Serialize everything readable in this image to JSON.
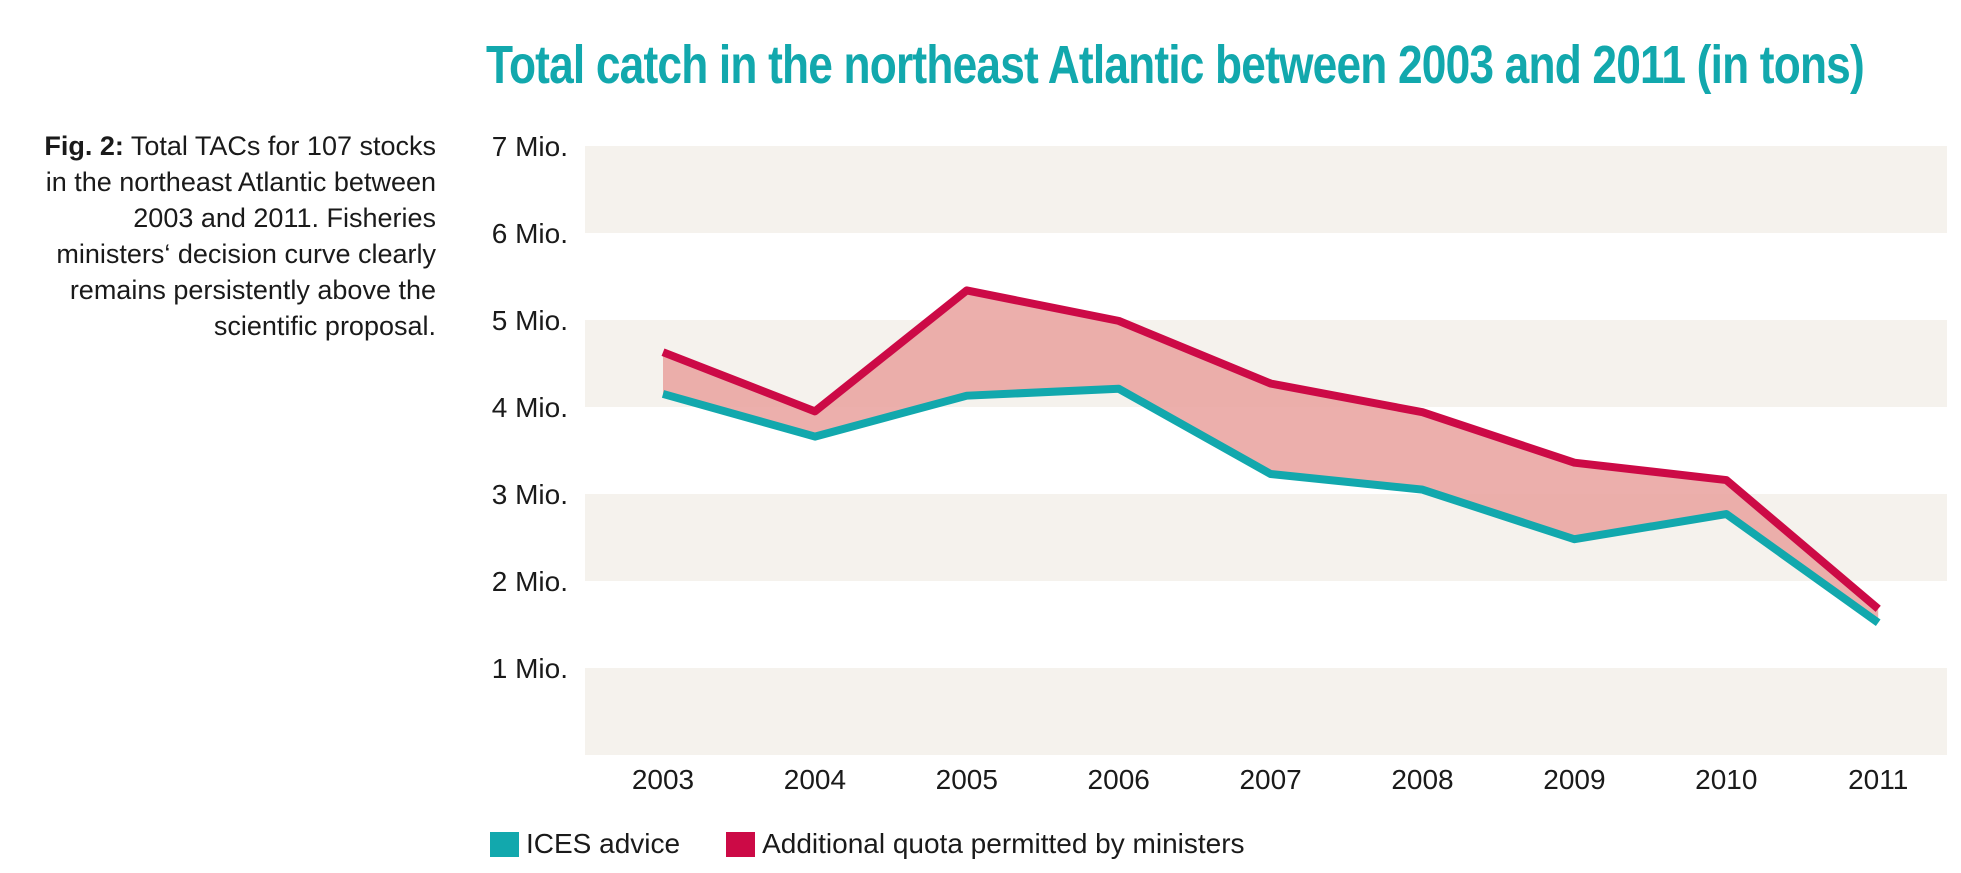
{
  "figure": {
    "caption_label": "Fig. 2:",
    "caption_text": " Total TACs for 107 stocks in the northeast Atlantic between 2003 and 2011. Fisheries ministers‘ decision curve clearly remains persistently above the scientific proposal."
  },
  "colors": {
    "ices": "#12a8ad",
    "ministers": "#cc0a46",
    "gap_fill": "#e9a4a1",
    "band": "#f5f2ed"
  },
  "chart_data": {
    "type": "line",
    "title": "Total catch in the northeast Atlantic between 2003 and 2011 (in tons)",
    "categories": [
      "2003",
      "2004",
      "2005",
      "2006",
      "2007",
      "2008",
      "2009",
      "2010",
      "2011"
    ],
    "y_tick_labels": [
      "1 Mio.",
      "2 Mio.",
      "3 Mio.",
      "4 Mio.",
      "5 Mio.",
      "6 Mio.",
      "7 Mio."
    ],
    "ylim": [
      0,
      7
    ],
    "y_unit_millions_of_tons": true,
    "series": [
      {
        "name": "ICES advice",
        "color": "#12a8ad",
        "values": [
          4.15,
          3.66,
          4.13,
          4.21,
          3.23,
          3.05,
          2.48,
          2.77,
          1.52
        ]
      },
      {
        "name": "Additional quota permitted by ministers",
        "color": "#cc0a46",
        "values": [
          4.63,
          3.95,
          5.34,
          4.99,
          4.27,
          3.94,
          3.36,
          3.16,
          1.68
        ]
      }
    ],
    "area_between_series": true,
    "background_bands": true,
    "legend_position": "bottom-left",
    "grid": false
  }
}
